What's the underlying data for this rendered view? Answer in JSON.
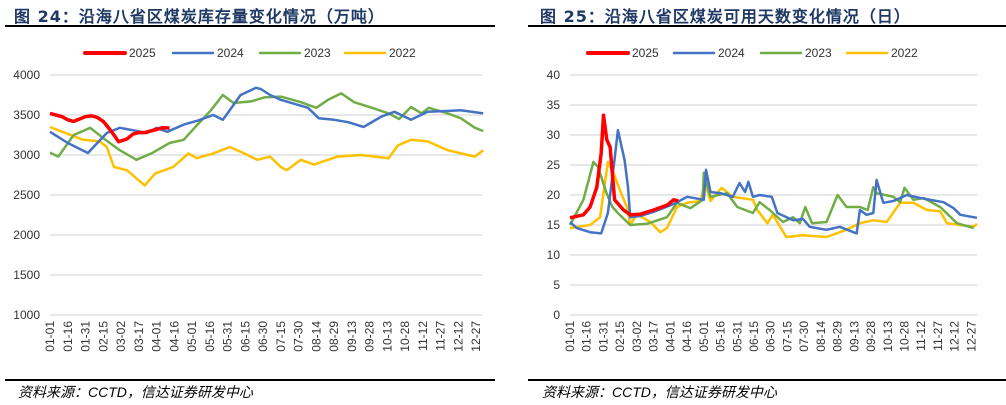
{
  "chart_data": [
    {
      "type": "line",
      "title": "图 24：沿海八省区煤炭库存量变化情况（万吨）",
      "source": "资料来源：CCTD，信达证券研发中心",
      "ylim": [
        1000,
        4000
      ],
      "yticks": [
        1000,
        1500,
        2000,
        2500,
        3000,
        3500,
        4000
      ],
      "xlabels": [
        "01-01",
        "01-16",
        "01-31",
        "02-15",
        "03-02",
        "03-17",
        "04-01",
        "04-16",
        "05-01",
        "05-16",
        "05-31",
        "06-15",
        "06-30",
        "07-15",
        "07-30",
        "08-14",
        "08-29",
        "09-13",
        "09-28",
        "10-13",
        "10-28",
        "11-12",
        "11-27",
        "12-12",
        "12-27"
      ],
      "xunit": "day of year",
      "grid": true,
      "legend": "top",
      "series": [
        {
          "name": "2025",
          "color": "#ff0000",
          "points": [
            [
              0,
              3520
            ],
            [
              5,
              3500
            ],
            [
              10,
              3480
            ],
            [
              15,
              3440
            ],
            [
              20,
              3420
            ],
            [
              25,
              3450
            ],
            [
              30,
              3480
            ],
            [
              35,
              3490
            ],
            [
              40,
              3470
            ],
            [
              45,
              3420
            ],
            [
              50,
              3330
            ],
            [
              55,
              3230
            ],
            [
              58,
              3166
            ],
            [
              65,
              3200
            ],
            [
              70,
              3260
            ],
            [
              75,
              3280
            ],
            [
              80,
              3280
            ],
            [
              85,
              3300
            ],
            [
              90,
              3320
            ],
            [
              95,
              3340
            ],
            [
              101,
              3337
            ]
          ]
        },
        {
          "name": "2024",
          "color": "#4472c4",
          "points": [
            [
              0,
              3290
            ],
            [
              15,
              3150
            ],
            [
              32,
              3025
            ],
            [
              48,
              3275
            ],
            [
              59,
              3340
            ],
            [
              70,
              3310
            ],
            [
              82,
              3275
            ],
            [
              90,
              3340
            ],
            [
              99,
              3290
            ],
            [
              113,
              3380
            ],
            [
              125,
              3430
            ],
            [
              138,
              3500
            ],
            [
              146,
              3440
            ],
            [
              150,
              3520
            ],
            [
              161,
              3750
            ],
            [
              174,
              3840
            ],
            [
              178,
              3825
            ],
            [
              186,
              3750
            ],
            [
              195,
              3690
            ],
            [
              218,
              3590
            ],
            [
              227,
              3460
            ],
            [
              240,
              3440
            ],
            [
              252,
              3410
            ],
            [
              265,
              3350
            ],
            [
              280,
              3480
            ],
            [
              291,
              3540
            ],
            [
              305,
              3440
            ],
            [
              319,
              3540
            ],
            [
              335,
              3550
            ],
            [
              347,
              3560
            ],
            [
              366,
              3520
            ]
          ]
        },
        {
          "name": "2023",
          "color": "#70ad47",
          "points": [
            [
              0,
              3030
            ],
            [
              7,
              2980
            ],
            [
              20,
              3250
            ],
            [
              34,
              3340
            ],
            [
              45,
              3210
            ],
            [
              59,
              3060
            ],
            [
              73,
              2940
            ],
            [
              87,
              3030
            ],
            [
              101,
              3150
            ],
            [
              113,
              3190
            ],
            [
              124,
              3370
            ],
            [
              136,
              3560
            ],
            [
              146,
              3750
            ],
            [
              155,
              3650
            ],
            [
              170,
              3670
            ],
            [
              181,
              3720
            ],
            [
              195,
              3730
            ],
            [
              212,
              3660
            ],
            [
              225,
              3590
            ],
            [
              235,
              3690
            ],
            [
              246,
              3770
            ],
            [
              257,
              3660
            ],
            [
              274,
              3580
            ],
            [
              286,
              3520
            ],
            [
              295,
              3450
            ],
            [
              305,
              3600
            ],
            [
              314,
              3520
            ],
            [
              320,
              3590
            ],
            [
              336,
              3520
            ],
            [
              347,
              3460
            ],
            [
              359,
              3340
            ],
            [
              366,
              3300
            ]
          ]
        },
        {
          "name": "2022",
          "color": "#ffc000",
          "points": [
            [
              0,
              3350
            ],
            [
              14,
              3270
            ],
            [
              28,
              3190
            ],
            [
              42,
              3170
            ],
            [
              48,
              3100
            ],
            [
              54,
              2850
            ],
            [
              65,
              2810
            ],
            [
              80,
              2620
            ],
            [
              89,
              2770
            ],
            [
              104,
              2850
            ],
            [
              117,
              3020
            ],
            [
              124,
              2960
            ],
            [
              138,
              3020
            ],
            [
              152,
              3100
            ],
            [
              164,
              3020
            ],
            [
              175,
              2940
            ],
            [
              186,
              2980
            ],
            [
              195,
              2850
            ],
            [
              200,
              2810
            ],
            [
              212,
              2940
            ],
            [
              223,
              2880
            ],
            [
              243,
              2980
            ],
            [
              263,
              3000
            ],
            [
              286,
              2960
            ],
            [
              294,
              3120
            ],
            [
              305,
              3190
            ],
            [
              319,
              3170
            ],
            [
              336,
              3060
            ],
            [
              359,
              2980
            ],
            [
              366,
              3060
            ]
          ]
        }
      ]
    },
    {
      "type": "line",
      "title": "图 25：沿海八省区煤炭可用天数变化情况（日）",
      "source": "资料来源：CCTD，信达证券研发中心",
      "ylim": [
        0,
        40
      ],
      "yticks": [
        0,
        5,
        10,
        15,
        20,
        25,
        30,
        35,
        40
      ],
      "xlabels": [
        "01-01",
        "01-16",
        "01-31",
        "02-15",
        "03-02",
        "03-17",
        "04-01",
        "04-16",
        "05-01",
        "05-16",
        "05-31",
        "06-15",
        "06-30",
        "07-15",
        "07-30",
        "08-14",
        "08-29",
        "09-13",
        "09-28",
        "10-13",
        "10-28",
        "11-12",
        "11-27",
        "12-12",
        "12-27"
      ],
      "xunit": "day of year",
      "grid": true,
      "legend": "top",
      "series": [
        {
          "name": "2025",
          "color": "#ff0000",
          "points": [
            [
              0,
              16.2
            ],
            [
              12,
              16.7
            ],
            [
              18,
              18
            ],
            [
              24,
              21.3
            ],
            [
              28,
              27
            ],
            [
              30,
              33.3
            ],
            [
              33,
              29.2
            ],
            [
              36,
              28
            ],
            [
              40,
              19.2
            ],
            [
              48,
              17.5
            ],
            [
              54,
              16.7
            ],
            [
              63,
              16.8
            ],
            [
              75,
              17.5
            ],
            [
              87,
              18.3
            ],
            [
              93,
              19.2
            ],
            [
              97,
              19
            ]
          ]
        },
        {
          "name": "2024",
          "color": "#4472c4",
          "points": [
            [
              0,
              15.5
            ],
            [
              6,
              14.5
            ],
            [
              18,
              13.8
            ],
            [
              28,
              13.6
            ],
            [
              34,
              17
            ],
            [
              40,
              26
            ],
            [
              43,
              30.8
            ],
            [
              49,
              25.8
            ],
            [
              52,
              21.3
            ],
            [
              54,
              16.3
            ],
            [
              63,
              16.5
            ],
            [
              75,
              17.2
            ],
            [
              93,
              18.5
            ],
            [
              105,
              19.7
            ],
            [
              120,
              19.2
            ],
            [
              122,
              24.2
            ],
            [
              126,
              20.5
            ],
            [
              135,
              20.3
            ],
            [
              146,
              19.7
            ],
            [
              152,
              22
            ],
            [
              157,
              20.5
            ],
            [
              160,
              22.2
            ],
            [
              164,
              19.7
            ],
            [
              170,
              20
            ],
            [
              181,
              19.7
            ],
            [
              186,
              17
            ],
            [
              200,
              15.8
            ],
            [
              209,
              16
            ],
            [
              215,
              14.7
            ],
            [
              230,
              14.2
            ],
            [
              242,
              14.7
            ],
            [
              257,
              13.6
            ],
            [
              260,
              17.5
            ],
            [
              266,
              16.7
            ],
            [
              272,
              17
            ],
            [
              275,
              22.5
            ],
            [
              281,
              18.7
            ],
            [
              290,
              19
            ],
            [
              302,
              20
            ],
            [
              314,
              19.5
            ],
            [
              335,
              18.8
            ],
            [
              344,
              17.8
            ],
            [
              350,
              16.7
            ],
            [
              365,
              16.2
            ]
          ]
        },
        {
          "name": "2023",
          "color": "#70ad47",
          "points": [
            [
              0,
              15
            ],
            [
              12,
              19.2
            ],
            [
              21,
              25.5
            ],
            [
              25,
              24.7
            ],
            [
              33,
              20.2
            ],
            [
              38,
              18
            ],
            [
              43,
              17
            ],
            [
              54,
              15
            ],
            [
              69,
              15.2
            ],
            [
              87,
              16.3
            ],
            [
              96,
              18.7
            ],
            [
              108,
              17.8
            ],
            [
              119,
              19.2
            ],
            [
              120,
              23.7
            ],
            [
              126,
              19.7
            ],
            [
              141,
              20.3
            ],
            [
              150,
              18
            ],
            [
              164,
              17
            ],
            [
              170,
              18.8
            ],
            [
              179,
              17.5
            ],
            [
              191,
              15.5
            ],
            [
              200,
              16.3
            ],
            [
              206,
              15.3
            ],
            [
              211,
              18
            ],
            [
              217,
              15.3
            ],
            [
              230,
              15.5
            ],
            [
              240,
              20
            ],
            [
              248,
              18
            ],
            [
              260,
              18
            ],
            [
              267,
              17.5
            ],
            [
              272,
              21.3
            ],
            [
              275,
              20.3
            ],
            [
              290,
              19.7
            ],
            [
              296,
              18.8
            ],
            [
              300,
              21.2
            ],
            [
              308,
              19.2
            ],
            [
              317,
              19.5
            ],
            [
              332,
              18
            ],
            [
              347,
              15.3
            ],
            [
              362,
              14.5
            ]
          ]
        },
        {
          "name": "2022",
          "color": "#ffc000",
          "points": [
            [
              0,
              14.5
            ],
            [
              18,
              15
            ],
            [
              27,
              16.3
            ],
            [
              34,
              25.5
            ],
            [
              39,
              23.7
            ],
            [
              46,
              20.2
            ],
            [
              51,
              18
            ],
            [
              54,
              15
            ],
            [
              60,
              16.8
            ],
            [
              72,
              15.5
            ],
            [
              81,
              13.8
            ],
            [
              87,
              14.5
            ],
            [
              96,
              18
            ],
            [
              105,
              18.7
            ],
            [
              117,
              19
            ],
            [
              121,
              22
            ],
            [
              126,
              19
            ],
            [
              136,
              21.2
            ],
            [
              146,
              19.7
            ],
            [
              164,
              19.2
            ],
            [
              168,
              17.5
            ],
            [
              177,
              15.3
            ],
            [
              182,
              16.7
            ],
            [
              194,
              13
            ],
            [
              209,
              13.3
            ],
            [
              230,
              13
            ],
            [
              248,
              14.2
            ],
            [
              260,
              15.3
            ],
            [
              272,
              15.8
            ],
            [
              284,
              15.5
            ],
            [
              296,
              18.7
            ],
            [
              308,
              18.7
            ],
            [
              320,
              17.5
            ],
            [
              332,
              17.3
            ],
            [
              338,
              15.3
            ],
            [
              350,
              15
            ],
            [
              362,
              14.7
            ],
            [
              365,
              15.2
            ]
          ]
        }
      ]
    }
  ]
}
